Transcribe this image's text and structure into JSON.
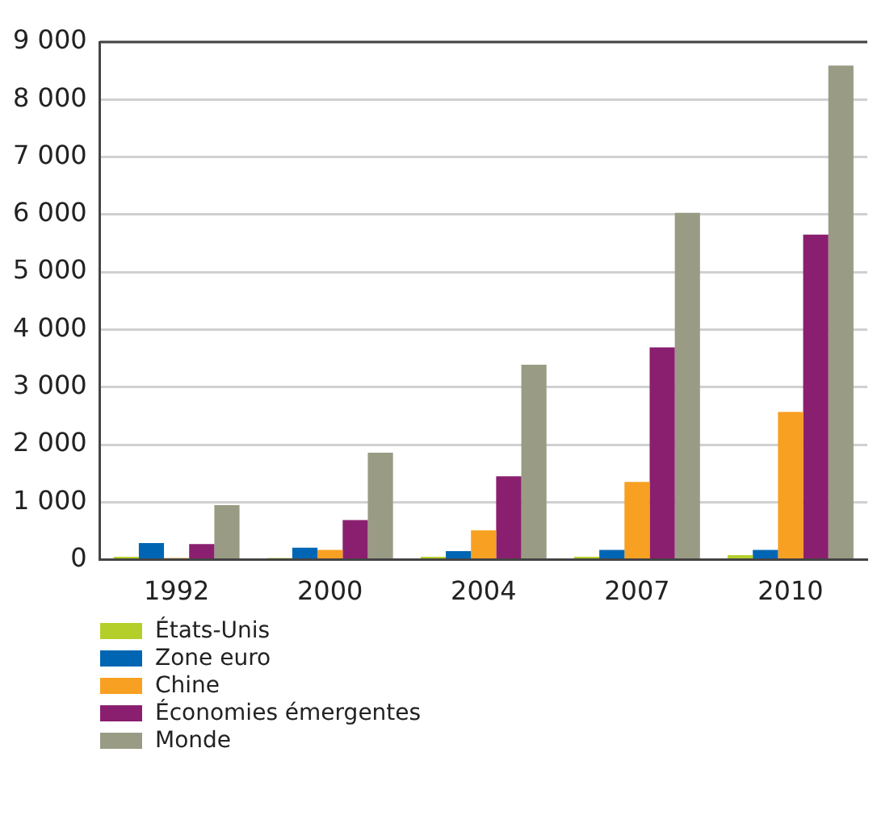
{
  "chart_data": {
    "type": "bar",
    "categories": [
      "1992",
      "2000",
      "2004",
      "2007",
      "2010"
    ],
    "series": [
      {
        "name": "États-Unis",
        "color": "#b5cf2a",
        "values": [
          50,
          30,
          50,
          50,
          80
        ]
      },
      {
        "name": "Zone euro",
        "color": "#0066b3",
        "values": [
          290,
          210,
          150,
          170,
          170
        ]
      },
      {
        "name": "Chine",
        "color": "#f7a021",
        "values": [
          30,
          170,
          510,
          1350,
          2570
        ]
      },
      {
        "name": "Économies émergentes",
        "color": "#8a1f6f",
        "values": [
          270,
          690,
          1450,
          3690,
          5650
        ]
      },
      {
        "name": "Monde",
        "color": "#999b84",
        "values": [
          950,
          1860,
          3390,
          6030,
          8590
        ]
      }
    ],
    "ylim": [
      0,
      9000
    ],
    "yticks": [
      0,
      {
        "value": 1000,
        "label": "1 000"
      },
      {
        "value": 2000,
        "label": "2 000"
      },
      {
        "value": 3000,
        "label": "3 000"
      },
      {
        "value": 4000,
        "label": "4 000"
      },
      {
        "value": 5000,
        "label": "5 000"
      },
      {
        "value": 6000,
        "label": "6 000"
      },
      {
        "value": 7000,
        "label": "7 000"
      },
      {
        "value": 8000,
        "label": "8 000"
      },
      {
        "value": 9000,
        "label": "9 000"
      }
    ],
    "grid": "y",
    "legend": "bottom"
  }
}
